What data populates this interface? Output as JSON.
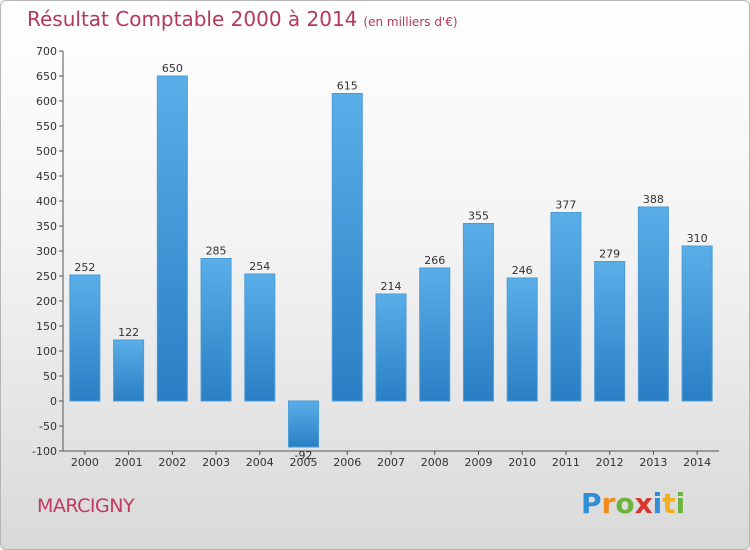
{
  "title": "Résultat Comptable 2000 à 2014",
  "subtitle": "(en milliers d'€)",
  "commune": "MARCIGNY",
  "logo": {
    "letters": [
      "P",
      "r",
      "o",
      "x",
      "i",
      "t",
      "i"
    ],
    "colors": [
      "#2f8fd6",
      "#f28a1e",
      "#6bb33a",
      "#d8352e",
      "#2f8fd6",
      "#f2b01e",
      "#6bb33a"
    ]
  },
  "colors": {
    "bar_light": "#5aaee8",
    "bar_dark": "#2a7fc4",
    "title": "#b5385a"
  },
  "chart_data": {
    "type": "bar",
    "categories": [
      "2000",
      "2001",
      "2002",
      "2003",
      "2004",
      "2005",
      "2006",
      "2007",
      "2008",
      "2009",
      "2010",
      "2011",
      "2012",
      "2013",
      "2014"
    ],
    "values": [
      252,
      122,
      650,
      285,
      254,
      -92,
      615,
      214,
      266,
      355,
      246,
      377,
      279,
      388,
      310
    ],
    "ylim": [
      -100,
      700
    ],
    "yticks": [
      -100,
      -50,
      0,
      50,
      100,
      150,
      200,
      250,
      300,
      350,
      400,
      450,
      500,
      550,
      600,
      650,
      700
    ],
    "grid": false,
    "title": "Résultat Comptable 2000 à 2014",
    "xlabel": "",
    "ylabel": ""
  }
}
